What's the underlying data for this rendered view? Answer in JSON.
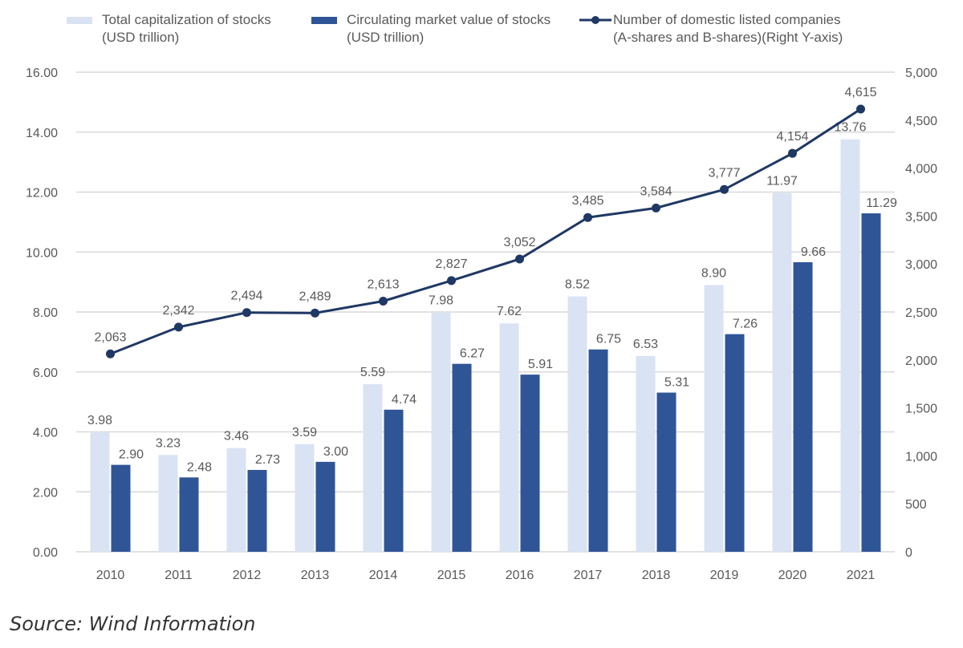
{
  "chart_data": {
    "type": "bar",
    "title": "",
    "categories": [
      "2010",
      "2011",
      "2012",
      "2013",
      "2014",
      "2015",
      "2016",
      "2017",
      "2018",
      "2019",
      "2020",
      "2021"
    ],
    "series": [
      {
        "name": "Total capitalization of stocks\n(USD trillion)",
        "type": "bar",
        "axis": "left",
        "color": "#dae3f3",
        "values": [
          3.98,
          3.23,
          3.46,
          3.59,
          5.59,
          7.98,
          7.62,
          8.52,
          6.53,
          8.9,
          11.97,
          13.76
        ]
      },
      {
        "name": "Circulating market value of stocks\n(USD trillion)",
        "type": "bar",
        "axis": "left",
        "color": "#2f5597",
        "values": [
          2.9,
          2.48,
          2.73,
          3.0,
          4.74,
          6.27,
          5.91,
          6.75,
          5.31,
          7.26,
          9.66,
          11.29
        ]
      },
      {
        "name": "Number of domestic listed companies\n(A-shares and B-shares)(Right Y-axis)",
        "type": "line",
        "axis": "right",
        "color": "#1f3864",
        "values": [
          2063,
          2342,
          2494,
          2489,
          2613,
          2827,
          3052,
          3485,
          3584,
          3777,
          4154,
          4615
        ]
      }
    ],
    "left_axis": {
      "ylim": [
        0,
        16
      ],
      "ticks": [
        "0.00",
        "2.00",
        "4.00",
        "6.00",
        "8.00",
        "10.00",
        "12.00",
        "14.00",
        "16.00"
      ]
    },
    "right_axis": {
      "ylim": [
        0,
        5000
      ],
      "ticks": [
        "0",
        "500",
        "1,000",
        "1,500",
        "2,000",
        "2,500",
        "3,000",
        "3,500",
        "4,000",
        "4,500",
        "5,000"
      ]
    },
    "grid": true,
    "legend": "top",
    "xlabel": "",
    "ylabel": ""
  },
  "legend": {
    "item1_line1": "Total capitalization of stocks",
    "item1_line2": "(USD trillion)",
    "item2_line1": "Circulating market value of stocks",
    "item2_line2": "(USD trillion)",
    "item3_line1": "Number of domestic listed companies",
    "item3_line2": "(A-shares and B-shares)(Right Y-axis)"
  },
  "source": "Source: Wind Information"
}
